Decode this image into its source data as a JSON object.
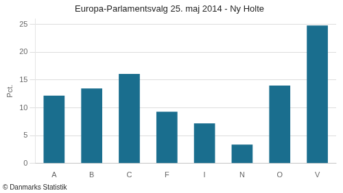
{
  "chart_data": {
    "type": "bar",
    "title": "Europa-Parlamentsvalg 25. maj 2014 - Ny Holte",
    "categories": [
      "A",
      "B",
      "C",
      "F",
      "I",
      "N",
      "O",
      "V"
    ],
    "values": [
      12.2,
      13.5,
      16.1,
      9.3,
      7.2,
      3.4,
      14.0,
      24.8
    ],
    "color": "#1a6e8e",
    "ylabel": "Pct.",
    "annotations": [
      "© Danmarks Statistik"
    ],
    "ylim": [
      0,
      26
    ],
    "yticks": [
      0,
      5,
      10,
      15,
      20,
      25
    ],
    "grid": true
  }
}
